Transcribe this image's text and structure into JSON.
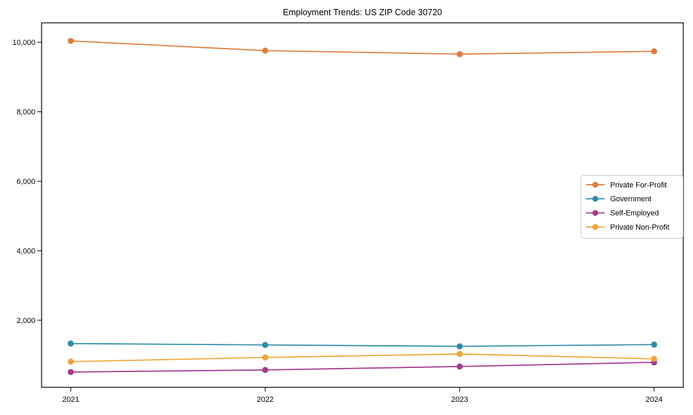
{
  "figure": {
    "title": "Employment Trends: US ZIP Code 30720"
  },
  "chart_data": {
    "type": "line",
    "title": "Employment Trends: US ZIP Code 30720",
    "xlabel": "",
    "ylabel": "",
    "x": [
      "2021",
      "2022",
      "2023",
      "2024"
    ],
    "series": [
      {
        "name": "Private For-Profit",
        "color": "#E17C3F",
        "values": [
          10040,
          9760,
          9660,
          9740
        ]
      },
      {
        "name": "Government",
        "color": "#2E8CA9",
        "values": [
          1330,
          1290,
          1250,
          1300
        ]
      },
      {
        "name": "Self-Employed",
        "color": "#A53B8F",
        "values": [
          510,
          570,
          670,
          790
        ]
      },
      {
        "name": "Private Non-Profit",
        "color": "#F0A434",
        "values": [
          810,
          930,
          1030,
          890
        ]
      }
    ],
    "yticks": [
      2000,
      4000,
      6000,
      8000,
      10000
    ],
    "ytick_labels": [
      "2,000",
      "4,000",
      "6,000",
      "8,000",
      "10,000"
    ],
    "ylim": [
      70,
      10560
    ],
    "grid": false,
    "legend_position": "center-right",
    "marker": "circle",
    "background_color": "#ffffff",
    "spine_color": "#000000",
    "legend_border_color": "#cccccc"
  }
}
